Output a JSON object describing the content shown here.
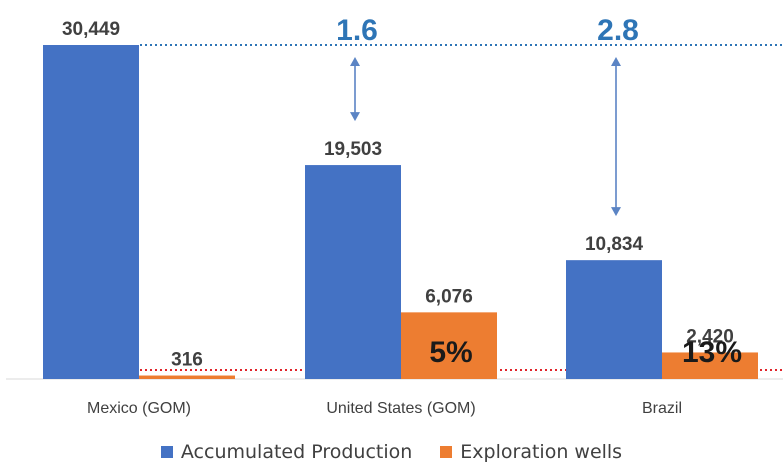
{
  "chart_data": {
    "type": "bar",
    "categories": [
      "Mexico (GOM)",
      "United States (GOM)",
      "Brazil"
    ],
    "series": [
      {
        "name": "Accumulated Production",
        "color": "#4472C4",
        "values": [
          30449,
          19503,
          10834
        ],
        "labels": [
          "30,449",
          "19,503",
          "10,834"
        ]
      },
      {
        "name": "Exploration wells",
        "color": "#ED7D31",
        "values": [
          316,
          6076,
          2420
        ],
        "labels": [
          "316",
          "6,076",
          "2,420"
        ]
      }
    ],
    "ylim": [
      0,
      31500
    ],
    "grid": false,
    "legend_position": "bottom",
    "annotations": {
      "ratios": [
        {
          "category": "United States (GOM)",
          "label": "1.6"
        },
        {
          "category": "Brazil",
          "label": "2.8"
        }
      ],
      "percents": [
        {
          "category": "United States (GOM)",
          "label": "5%"
        },
        {
          "category": "Brazil",
          "label": "13%"
        }
      ],
      "ratio_color": "#2E75B6",
      "reference_line_colors": {
        "top": "#2E75B6",
        "bottom": "#E0242A"
      }
    }
  }
}
